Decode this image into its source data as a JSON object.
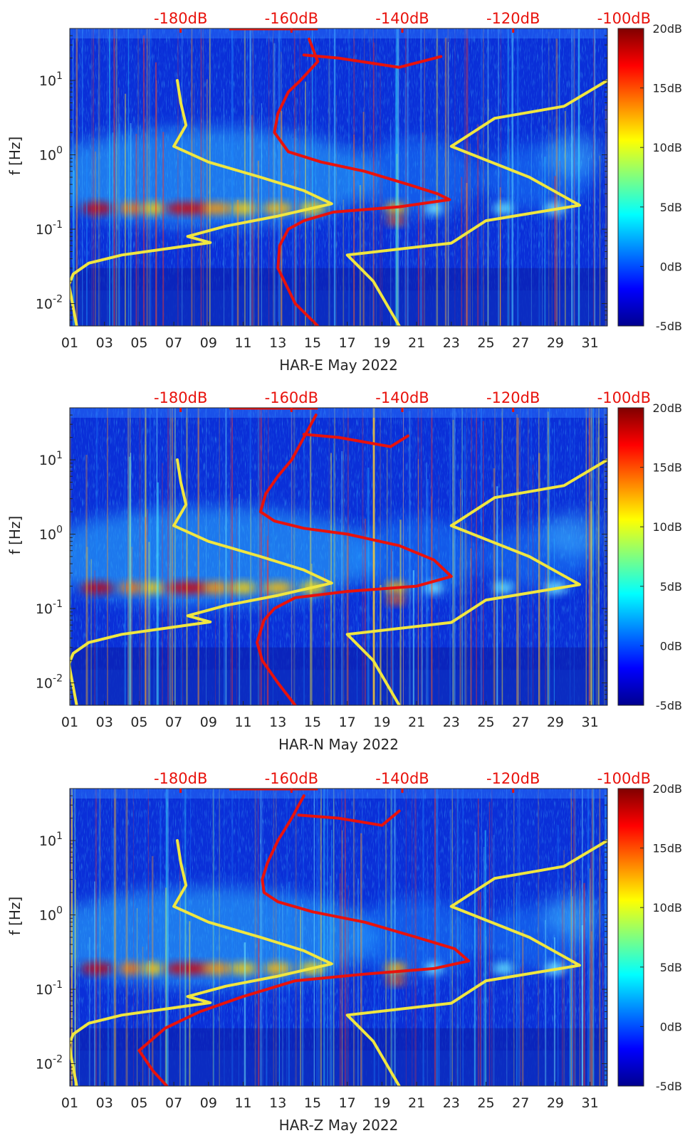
{
  "chart_data": [
    {
      "type": "heatmap",
      "title": "",
      "xlabel": "HAR-E May 2022",
      "ylabel": "f [Hz]",
      "x_tick_labels": [
        "01",
        "03",
        "05",
        "07",
        "09",
        "11",
        "13",
        "15",
        "17",
        "19",
        "21",
        "23",
        "25",
        "27",
        "29",
        "31"
      ],
      "x_range_days": [
        1,
        32
      ],
      "y_scale": "log",
      "y_range_hz": [
        0.005,
        50
      ],
      "y_tick_labels": [
        {
          "value": 10,
          "base": "10",
          "exp": "1"
        },
        {
          "value": 1,
          "base": "10",
          "exp": "0"
        },
        {
          "value": 0.1,
          "base": "10",
          "exp": "-1"
        },
        {
          "value": 0.01,
          "base": "10",
          "exp": "-2"
        }
      ],
      "top_axis_labels": [
        "-180dB",
        "-160dB",
        "-140dB",
        "-120dB",
        "-100dB"
      ],
      "top_axis_range_db": [
        -200,
        -103
      ],
      "colorbar": {
        "labels": [
          "20dB",
          "15dB",
          "10dB",
          "5dB",
          "0dB",
          "-5dB"
        ],
        "range_db": [
          -5,
          20
        ],
        "colormap": "jet"
      },
      "series": [
        {
          "color": "#f0e640",
          "points": [
            [
              7.2,
              10
            ],
            [
              7.4,
              5
            ],
            [
              7.7,
              2.5
            ],
            [
              7.0,
              1.3
            ],
            [
              9,
              0.8
            ],
            [
              12,
              0.5
            ],
            [
              14.5,
              0.33
            ],
            [
              16.1,
              0.22
            ],
            [
              13,
              0.15
            ],
            [
              10,
              0.11
            ],
            [
              7.8,
              0.08
            ],
            [
              9.1,
              0.066
            ],
            [
              4,
              0.045
            ],
            [
              2.1,
              0.035
            ],
            [
              1.2,
              0.025
            ],
            [
              0.95,
              0.018
            ],
            [
              1.4,
              0.005
            ]
          ]
        },
        {
          "color": "#f0e640",
          "points": [
            [
              32,
              10
            ],
            [
              29.5,
              4.5
            ],
            [
              25.5,
              3.1
            ],
            [
              23,
              1.3
            ],
            [
              27.5,
              0.5
            ],
            [
              30.4,
              0.21
            ],
            [
              25,
              0.13
            ],
            [
              23,
              0.065
            ],
            [
              17,
              0.045
            ],
            [
              18.5,
              0.02
            ],
            [
              20,
              0.005
            ]
          ]
        },
        {
          "color": "#e8120c",
          "points": [
            [
              14.8,
              36
            ],
            [
              15.3,
              18
            ],
            [
              14.3,
              10
            ],
            [
              13.6,
              7
            ],
            [
              13,
              3.6
            ],
            [
              12.8,
              2
            ],
            [
              13.6,
              1.1
            ],
            [
              15.5,
              0.8
            ],
            [
              18,
              0.6
            ],
            [
              20.5,
              0.4
            ],
            [
              22.2,
              0.3
            ],
            [
              22.9,
              0.25
            ],
            [
              20,
              0.2
            ],
            [
              16.2,
              0.17
            ],
            [
              14.5,
              0.13
            ],
            [
              13.6,
              0.1
            ],
            [
              13.1,
              0.06
            ],
            [
              13,
              0.03
            ],
            [
              14,
              0.01
            ],
            [
              15.3,
              0.005
            ]
          ]
        },
        {
          "color": "#e8120c",
          "points": [
            [
              14.5,
              22
            ],
            [
              16.5,
              20
            ],
            [
              20,
              15
            ],
            [
              22.4,
              21
            ]
          ]
        }
      ]
    },
    {
      "type": "heatmap",
      "title": "",
      "xlabel": "HAR-N May 2022",
      "ylabel": "f [Hz]",
      "x_tick_labels": [
        "01",
        "03",
        "05",
        "07",
        "09",
        "11",
        "13",
        "15",
        "17",
        "19",
        "21",
        "23",
        "25",
        "27",
        "29",
        "31"
      ],
      "x_range_days": [
        1,
        32
      ],
      "y_scale": "log",
      "y_range_hz": [
        0.005,
        50
      ],
      "y_tick_labels": [
        {
          "value": 10,
          "base": "10",
          "exp": "1"
        },
        {
          "value": 1,
          "base": "10",
          "exp": "0"
        },
        {
          "value": 0.1,
          "base": "10",
          "exp": "-1"
        },
        {
          "value": 0.01,
          "base": "10",
          "exp": "-2"
        }
      ],
      "top_axis_labels": [
        "-180dB",
        "-160dB",
        "-140dB",
        "-120dB",
        "-100dB"
      ],
      "top_axis_range_db": [
        -200,
        -103
      ],
      "colorbar": {
        "labels": [
          "20dB",
          "15dB",
          "10dB",
          "5dB",
          "0dB",
          "-5dB"
        ],
        "range_db": [
          -5,
          20
        ],
        "colormap": "jet"
      },
      "series": [
        {
          "color": "#f0e640",
          "points": [
            [
              7.2,
              10
            ],
            [
              7.4,
              5
            ],
            [
              7.7,
              2.5
            ],
            [
              7.0,
              1.3
            ],
            [
              9,
              0.8
            ],
            [
              12,
              0.5
            ],
            [
              14.5,
              0.33
            ],
            [
              16.1,
              0.22
            ],
            [
              13,
              0.15
            ],
            [
              10,
              0.11
            ],
            [
              7.8,
              0.08
            ],
            [
              9.1,
              0.066
            ],
            [
              4,
              0.045
            ],
            [
              2.1,
              0.035
            ],
            [
              1.2,
              0.025
            ],
            [
              0.95,
              0.018
            ],
            [
              1.4,
              0.005
            ]
          ]
        },
        {
          "color": "#f0e640",
          "points": [
            [
              32,
              10
            ],
            [
              29.5,
              4.5
            ],
            [
              25.5,
              3.1
            ],
            [
              23,
              1.3
            ],
            [
              27.5,
              0.5
            ],
            [
              30.4,
              0.21
            ],
            [
              25,
              0.13
            ],
            [
              23,
              0.065
            ],
            [
              17,
              0.045
            ],
            [
              18.5,
              0.02
            ],
            [
              20,
              0.005
            ]
          ]
        },
        {
          "color": "#e8120c",
          "points": [
            [
              15.2,
              40
            ],
            [
              14.5,
              20
            ],
            [
              13.8,
              10
            ],
            [
              13,
              6
            ],
            [
              12.3,
              3.5
            ],
            [
              12,
              2
            ],
            [
              12.8,
              1.5
            ],
            [
              14.5,
              1.2
            ],
            [
              17,
              1
            ],
            [
              20,
              0.7
            ],
            [
              22,
              0.45
            ],
            [
              23,
              0.27
            ],
            [
              21,
              0.2
            ],
            [
              17,
              0.17
            ],
            [
              14,
              0.14
            ],
            [
              12.8,
              0.1
            ],
            [
              12.2,
              0.07
            ],
            [
              11.8,
              0.035
            ],
            [
              12.1,
              0.02
            ],
            [
              13,
              0.01
            ],
            [
              14,
              0.005
            ]
          ]
        },
        {
          "color": "#e8120c",
          "points": [
            [
              14.5,
              22
            ],
            [
              16.5,
              20
            ],
            [
              19.5,
              15
            ],
            [
              20.5,
              21
            ]
          ]
        }
      ]
    },
    {
      "type": "heatmap",
      "title": "",
      "xlabel": "HAR-Z May 2022",
      "ylabel": "f [Hz]",
      "x_tick_labels": [
        "01",
        "03",
        "05",
        "07",
        "09",
        "11",
        "13",
        "15",
        "17",
        "19",
        "21",
        "23",
        "25",
        "27",
        "29",
        "31"
      ],
      "x_range_days": [
        1,
        32
      ],
      "y_scale": "log",
      "y_range_hz": [
        0.005,
        50
      ],
      "y_tick_labels": [
        {
          "value": 10,
          "base": "10",
          "exp": "1"
        },
        {
          "value": 1,
          "base": "10",
          "exp": "0"
        },
        {
          "value": 0.1,
          "base": "10",
          "exp": "-1"
        },
        {
          "value": 0.01,
          "base": "10",
          "exp": "-2"
        }
      ],
      "top_axis_labels": [
        "-180dB",
        "-160dB",
        "-140dB",
        "-120dB",
        "-100dB"
      ],
      "top_axis_range_db": [
        -200,
        -103
      ],
      "colorbar": {
        "labels": [
          "20dB",
          "15dB",
          "10dB",
          "5dB",
          "0dB",
          "-5dB"
        ],
        "range_db": [
          -5,
          20
        ],
        "colormap": "jet"
      },
      "series": [
        {
          "color": "#f0e640",
          "points": [
            [
              7.2,
              10
            ],
            [
              7.4,
              5
            ],
            [
              7.7,
              2.5
            ],
            [
              7.0,
              1.3
            ],
            [
              9,
              0.8
            ],
            [
              12,
              0.5
            ],
            [
              14.5,
              0.33
            ],
            [
              16.1,
              0.22
            ],
            [
              13,
              0.15
            ],
            [
              10,
              0.11
            ],
            [
              7.8,
              0.08
            ],
            [
              9.1,
              0.066
            ],
            [
              4,
              0.045
            ],
            [
              2.1,
              0.035
            ],
            [
              1.2,
              0.025
            ],
            [
              0.95,
              0.018
            ],
            [
              1.4,
              0.005
            ]
          ]
        },
        {
          "color": "#f0e640",
          "points": [
            [
              32,
              10
            ],
            [
              29.5,
              4.5
            ],
            [
              25.5,
              3.1
            ],
            [
              23,
              1.3
            ],
            [
              27.5,
              0.5
            ],
            [
              30.4,
              0.21
            ],
            [
              25,
              0.13
            ],
            [
              23,
              0.065
            ],
            [
              17,
              0.045
            ],
            [
              18.5,
              0.02
            ],
            [
              20,
              0.005
            ]
          ]
        },
        {
          "color": "#e8120c",
          "points": [
            [
              14.5,
              40
            ],
            [
              13.8,
              20
            ],
            [
              13,
              10
            ],
            [
              12.4,
              5
            ],
            [
              12.1,
              3
            ],
            [
              12.2,
              2
            ],
            [
              13,
              1.5
            ],
            [
              15,
              1.1
            ],
            [
              18,
              0.8
            ],
            [
              21,
              0.5
            ],
            [
              23.2,
              0.35
            ],
            [
              24,
              0.24
            ],
            [
              22,
              0.19
            ],
            [
              18,
              0.16
            ],
            [
              14,
              0.13
            ],
            [
              11,
              0.08
            ],
            [
              8.5,
              0.05
            ],
            [
              6.5,
              0.03
            ],
            [
              5,
              0.015
            ],
            [
              5.8,
              0.008
            ],
            [
              6.6,
              0.005
            ]
          ]
        },
        {
          "color": "#e8120c",
          "points": [
            [
              14.2,
              22
            ],
            [
              16.5,
              20
            ],
            [
              19,
              16
            ],
            [
              20,
              25
            ]
          ]
        }
      ]
    }
  ]
}
